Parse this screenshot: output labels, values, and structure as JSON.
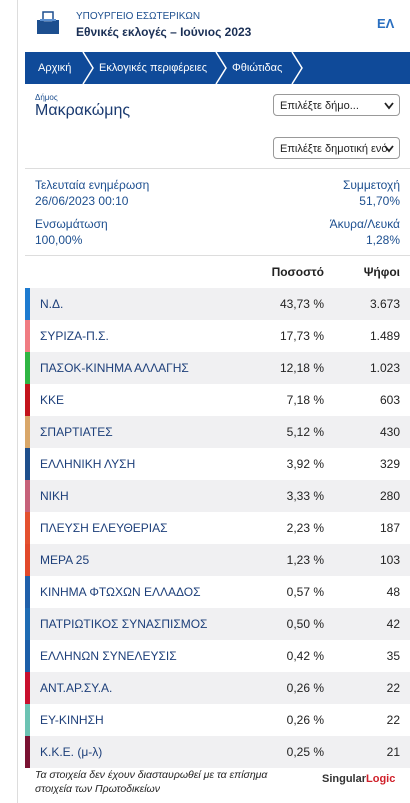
{
  "header": {
    "ministry": "ΥΠΟΥΡΓΕΙΟ ΕΣΩΤΕΡΙΚΩΝ",
    "election": "Εθνικές εκλογές – Ιούνιος 2023",
    "language": "ΕΛ"
  },
  "breadcrumb": [
    "Αρχική",
    "Εκλογικές περιφέρειες",
    "Φθιώτιδας"
  ],
  "municipality": {
    "label": "Δήμος",
    "name": "Μακρακώμης",
    "select_municipality": "Επιλέξτε δήμο...",
    "select_unit": "Επιλέξτε δημοτική ενό"
  },
  "info": {
    "updated_label": "Τελευταία ενημέρωση",
    "updated_value": "26/06/2023 00:10",
    "turnout_label": "Συμμετοχή",
    "turnout_value": "51,70%",
    "integration_label": "Ενσωμάτωση",
    "integration_value": "100,00%",
    "invalid_label": "Άκυρα/Λευκά",
    "invalid_value": "1,28%"
  },
  "table": {
    "columns": [
      "Ποσοστό",
      "Ψήφοι"
    ],
    "rows": [
      {
        "name": "Ν.Δ.",
        "percent": "43,73 %",
        "votes": "3.673",
        "color": "#1e7bd0"
      },
      {
        "name": "ΣΥΡΙΖΑ-Π.Σ.",
        "percent": "17,73 %",
        "votes": "1.489",
        "color": "#f07c82"
      },
      {
        "name": "ΠΑΣΟΚ-ΚΙΝΗΜΑ ΑΛΛΑΓΗΣ",
        "percent": "12,18 %",
        "votes": "1.023",
        "color": "#2fb543"
      },
      {
        "name": "ΚΚΕ",
        "percent": "7,18 %",
        "votes": "603",
        "color": "#c3141c"
      },
      {
        "name": "ΣΠΑΡΤΙΑΤΕΣ",
        "percent": "5,12 %",
        "votes": "430",
        "color": "#d9a769"
      },
      {
        "name": "ΕΛΛΗΝΙΚΗ ΛΥΣΗ",
        "percent": "3,92 %",
        "votes": "329",
        "color": "#1f4f8c"
      },
      {
        "name": "ΝΙΚΗ",
        "percent": "3,33 %",
        "votes": "280",
        "color": "#c6627a"
      },
      {
        "name": "ΠΛΕΥΣΗ ΕΛΕΥΘΕΡΙΑΣ",
        "percent": "2,23 %",
        "votes": "187",
        "color": "#e4512f"
      },
      {
        "name": "ΜΕΡΑ 25",
        "percent": "1,23 %",
        "votes": "103",
        "color": "#e2492b"
      },
      {
        "name": "ΚΙΝΗΜΑ ΦΤΩΧΩΝ ΕΛΛΑΔΟΣ",
        "percent": "0,57 %",
        "votes": "48",
        "color": "#2060aa"
      },
      {
        "name": "ΠΑΤΡΙΩΤΙΚΟΣ ΣΥΝΑΣΠΙΣΜΟΣ",
        "percent": "0,50 %",
        "votes": "42",
        "color": "#1f6cb4"
      },
      {
        "name": "ΕΛΛΗΝΩΝ ΣΥΝΕΛΕΥΣΙΣ",
        "percent": "0,42 %",
        "votes": "35",
        "color": "#1c5ea8"
      },
      {
        "name": "ΑΝΤ.ΑΡ.ΣΥ.Α.",
        "percent": "0,26 %",
        "votes": "22",
        "color": "#c8102e"
      },
      {
        "name": "ΕΥ-ΚΙΝΗΣΗ",
        "percent": "0,26 %",
        "votes": "22",
        "color": "#6cc3b3"
      },
      {
        "name": "Κ.Κ.Ε. (μ-λ)",
        "percent": "0,25 %",
        "votes": "21",
        "color": "#7a1232"
      }
    ]
  },
  "footer": {
    "note": "Τα στοιχεία δεν έχουν διασταυρωθεί με τα επίσημα στοιχεία των Πρωτοδικείων",
    "brand_a": "Singular",
    "brand_b": "Logic"
  }
}
